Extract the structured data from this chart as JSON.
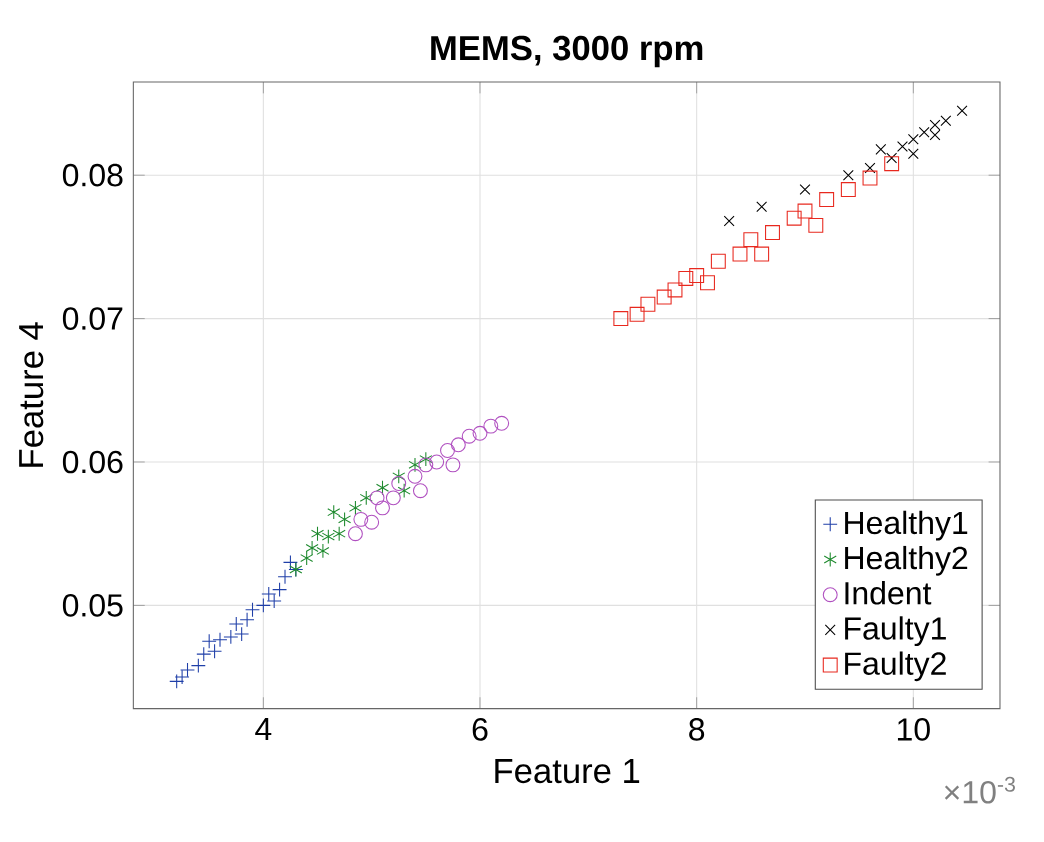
{
  "chart_data": {
    "type": "scatter",
    "title": "**MEMS, 3000 rpm**",
    "xlabel": "Feature 1",
    "ylabel": "Feature 4",
    "annotations": [
      "×10$^{-3}$"
    ],
    "xlim": [
      2.8,
      10.8
    ],
    "xticks": [
      4,
      6,
      8,
      10
    ],
    "ylim": [
      0.0428,
      0.0865
    ],
    "yticks": [
      0.05,
      0.06,
      0.07,
      0.08
    ],
    "grid": true,
    "legend": "bottom right",
    "series": [
      {
        "name": "Healthy1",
        "color": "#1f3fa8",
        "marker": "plus",
        "x": [
          3.2,
          3.25,
          3.3,
          3.4,
          3.45,
          3.55,
          3.6,
          3.7,
          3.75,
          3.85,
          3.9,
          4.0,
          4.05,
          4.15,
          4.2,
          4.3,
          4.25,
          3.5,
          3.8,
          4.1
        ],
        "values": [
          0.0447,
          0.045,
          0.0455,
          0.0458,
          0.0466,
          0.0468,
          0.0476,
          0.0478,
          0.0487,
          0.049,
          0.0497,
          0.05,
          0.0508,
          0.0511,
          0.052,
          0.0525,
          0.053,
          0.0475,
          0.048,
          0.0503
        ]
      },
      {
        "name": "Healthy2",
        "color": "#1e8a2e",
        "x": [
          4.3,
          4.4,
          4.45,
          4.55,
          4.6,
          4.7,
          4.75,
          4.85,
          4.95,
          5.1,
          5.25,
          5.4,
          5.5,
          5.3,
          4.5,
          4.65
        ],
        "values": [
          0.0525,
          0.0533,
          0.054,
          0.0538,
          0.0548,
          0.055,
          0.056,
          0.0568,
          0.0575,
          0.0582,
          0.059,
          0.0598,
          0.0602,
          0.058,
          0.055,
          0.0565
        ]
      },
      {
        "name": "Indent",
        "color": "#b050c0",
        "marker": "circle",
        "x": [
          4.85,
          4.9,
          5.0,
          5.1,
          5.2,
          5.25,
          5.4,
          5.5,
          5.6,
          5.7,
          5.8,
          5.9,
          6.0,
          6.1,
          6.2,
          5.45,
          5.75,
          5.05
        ],
        "values": [
          0.055,
          0.056,
          0.0558,
          0.0568,
          0.0575,
          0.0585,
          0.059,
          0.0598,
          0.06,
          0.0608,
          0.0612,
          0.0618,
          0.062,
          0.0625,
          0.0627,
          0.058,
          0.0598,
          0.0575
        ]
      },
      {
        "name": "Faulty1",
        "color": "#000000",
        "marker": "cross",
        "x": [
          8.3,
          8.6,
          9.0,
          9.4,
          9.6,
          9.8,
          9.9,
          10.0,
          10.1,
          10.2,
          10.3,
          10.45,
          10.0,
          10.2,
          9.7
        ],
        "values": [
          0.0768,
          0.0778,
          0.079,
          0.08,
          0.0805,
          0.0812,
          0.082,
          0.0825,
          0.083,
          0.0835,
          0.0838,
          0.0845,
          0.0815,
          0.0828,
          0.0818
        ]
      },
      {
        "name": "Faulty2",
        "color": "#e8281e",
        "marker": "square",
        "x": [
          7.3,
          7.45,
          7.55,
          7.7,
          7.8,
          7.9,
          8.0,
          8.2,
          8.4,
          8.5,
          8.7,
          8.9,
          9.0,
          9.2,
          9.4,
          9.6,
          9.8,
          8.1,
          8.6,
          9.1
        ],
        "values": [
          0.07,
          0.0703,
          0.071,
          0.0715,
          0.072,
          0.0728,
          0.073,
          0.074,
          0.0745,
          0.0755,
          0.076,
          0.077,
          0.0775,
          0.0783,
          0.079,
          0.0798,
          0.0808,
          0.0725,
          0.0745,
          0.0765
        ]
      }
    ]
  }
}
